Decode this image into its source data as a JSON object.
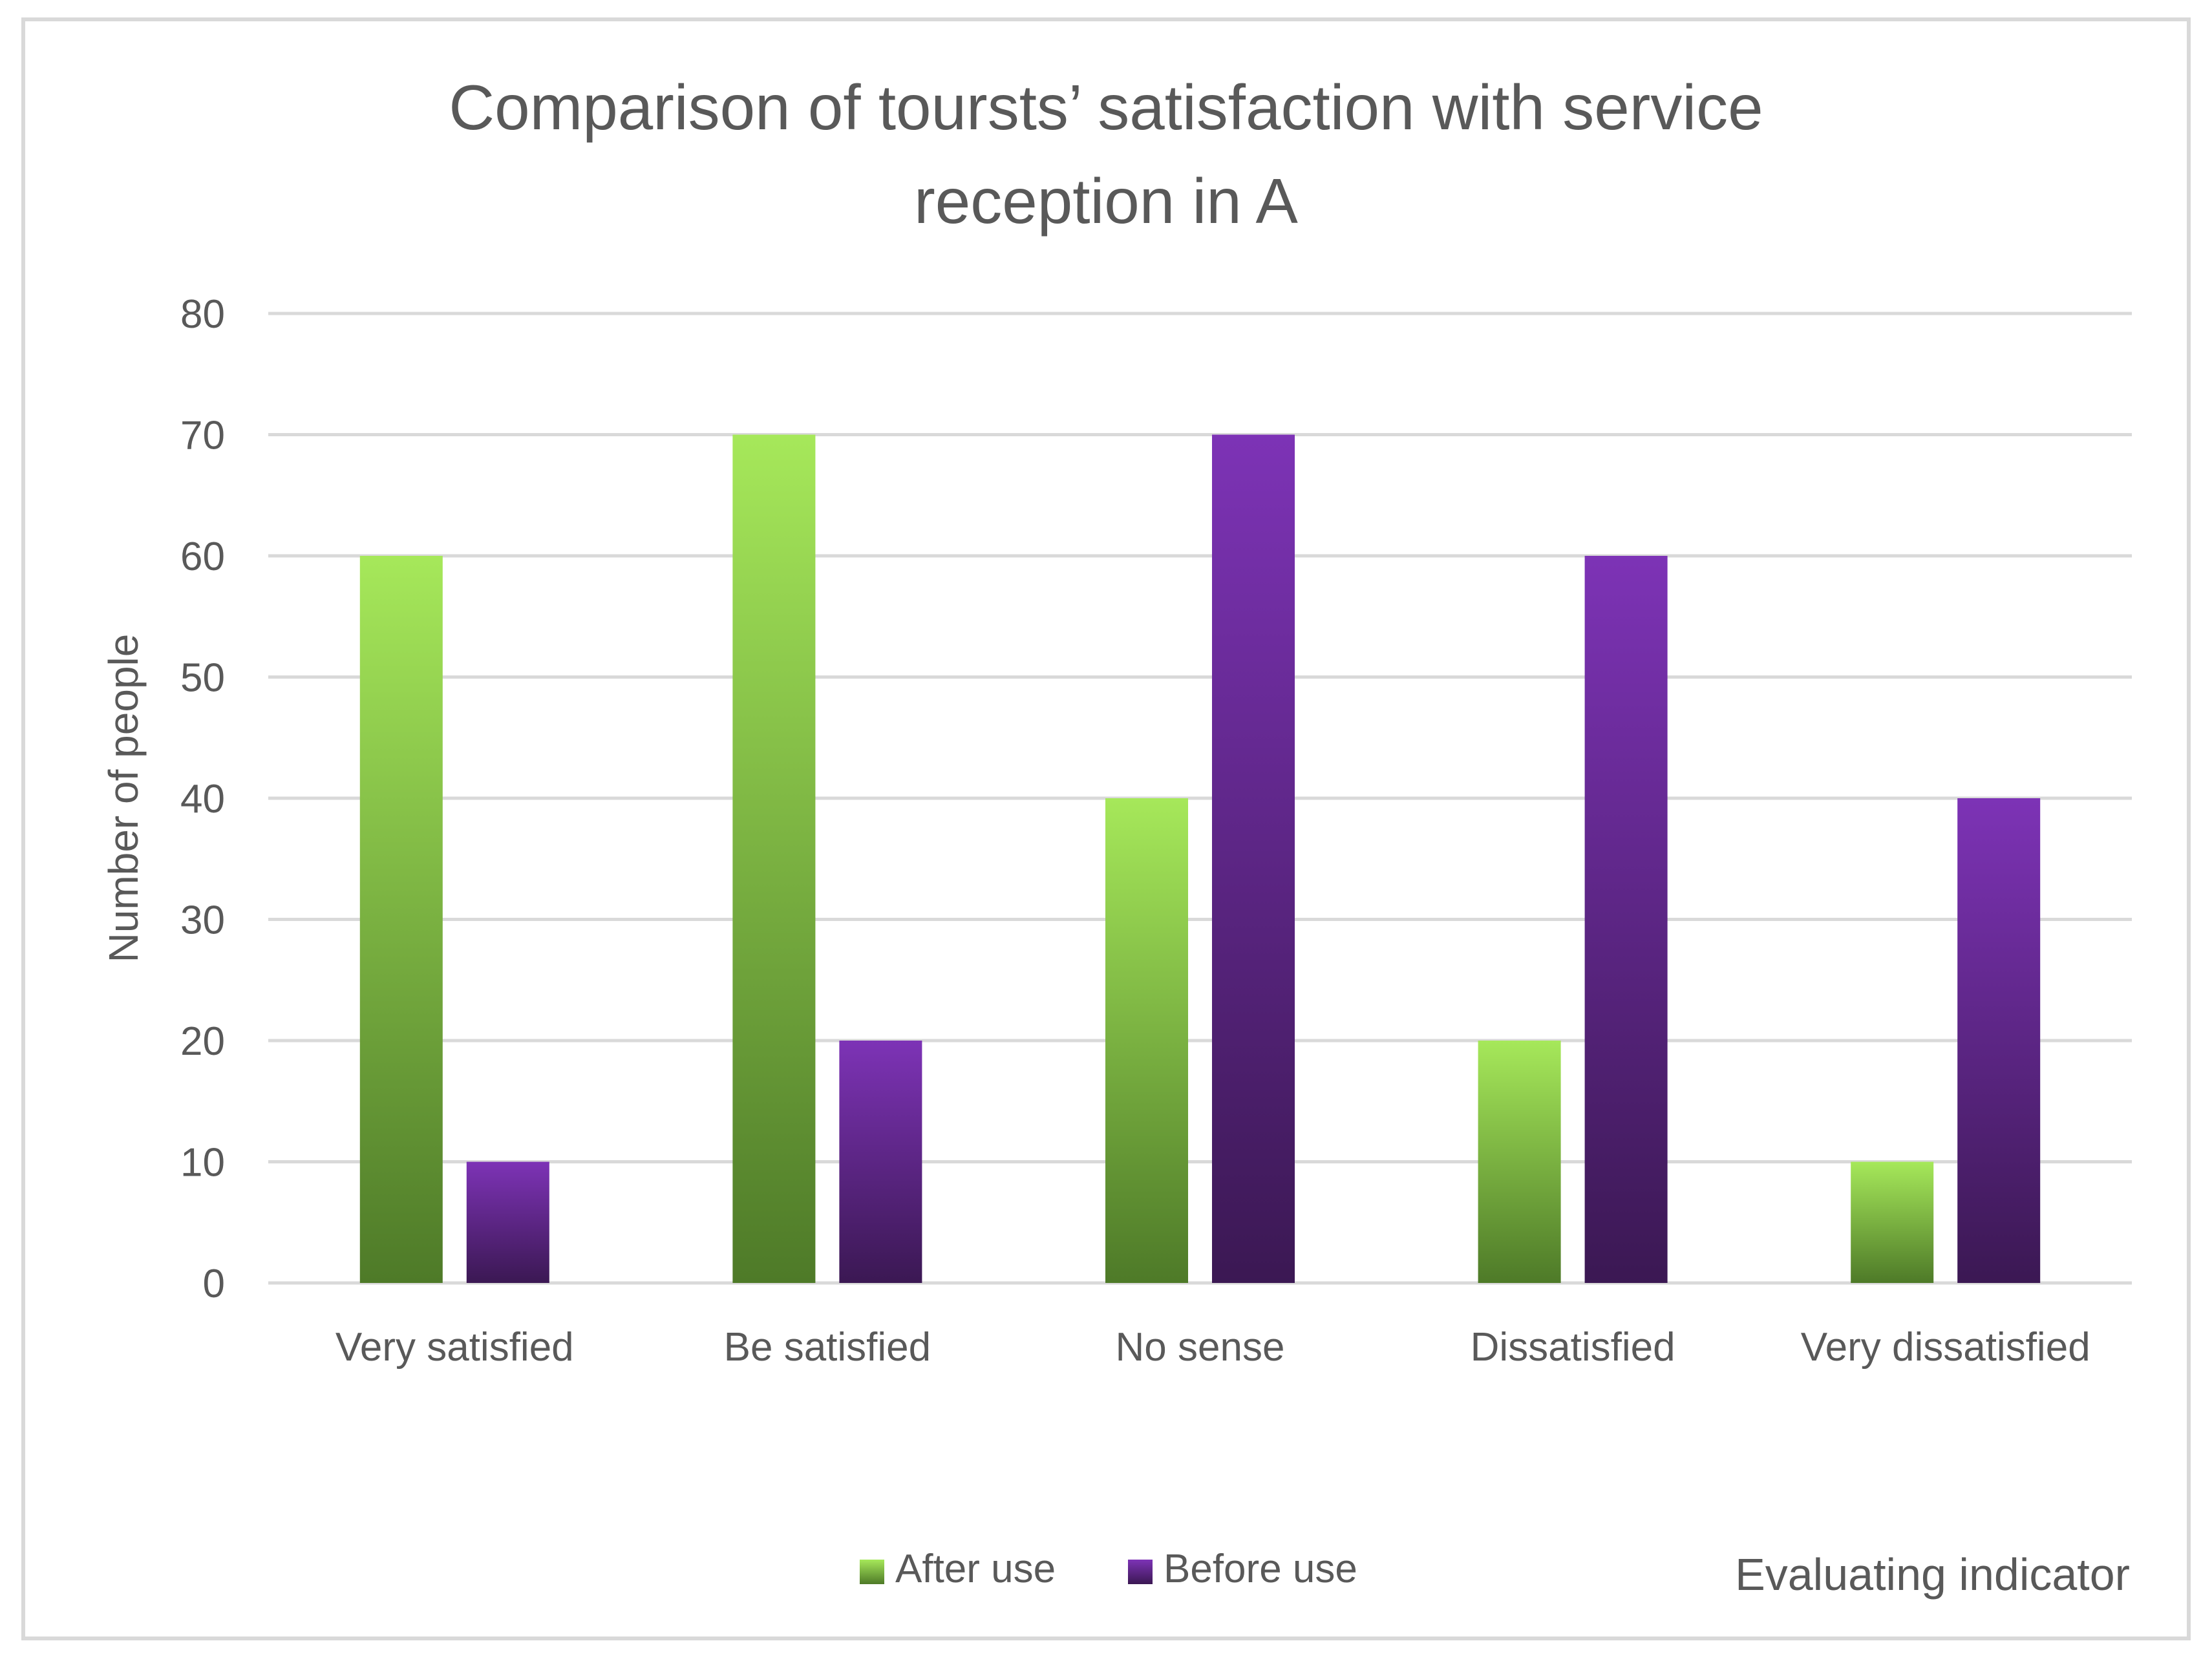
{
  "chart_data": {
    "type": "bar",
    "title_lines": [
      "Comparison of toursts’ satisfaction with service",
      "reception in A"
    ],
    "xlabel": "Evaluating indicator",
    "ylabel": "Number of people",
    "ylim": [
      0,
      80
    ],
    "yticks": [
      0,
      10,
      20,
      30,
      40,
      50,
      60,
      70,
      80
    ],
    "ytick_labels": [
      "0",
      "10",
      "20",
      "30",
      "40",
      "50",
      "60",
      "70",
      "80"
    ],
    "grid": true,
    "legend_position": "bottom",
    "categories": [
      "Very satisfied",
      "Be satisfied",
      "No sense",
      "Dissatisfied",
      "Very dissatisfied"
    ],
    "series": [
      {
        "name": "After use",
        "values": [
          60,
          70,
          40,
          20,
          10
        ],
        "color_top": "#a6e85a",
        "color_bottom": "#4e7a28"
      },
      {
        "name": "Before use",
        "values": [
          10,
          20,
          70,
          60,
          40
        ],
        "color_top": "#7d33b6",
        "color_bottom": "#3b1853"
      }
    ]
  }
}
